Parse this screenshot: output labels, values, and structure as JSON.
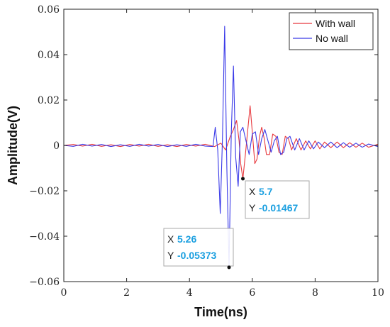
{
  "chart_data": {
    "type": "line",
    "title": "",
    "xlabel": "Time(ns)",
    "ylabel": "Amplitude(V)",
    "xlim": [
      0,
      10
    ],
    "ylim": [
      -0.06,
      0.06
    ],
    "x_ticks": [
      0,
      2,
      4,
      6,
      8,
      10
    ],
    "x_tick_labels": [
      "0",
      "2",
      "4",
      "6",
      "8",
      "10"
    ],
    "y_ticks": [
      -0.06,
      -0.04,
      -0.02,
      0,
      0.02,
      0.04,
      0.06
    ],
    "y_tick_labels": [
      "−0.06",
      "−0.04",
      "−0.02",
      "0",
      "0.02",
      "0.04",
      "0.06"
    ],
    "grid": false,
    "legend_position": "top-right",
    "series": [
      {
        "name": "With wall",
        "color": "#e8383d",
        "x": [
          0,
          0.3,
          0.6,
          0.9,
          1.2,
          1.5,
          1.8,
          2.1,
          2.4,
          2.7,
          3.0,
          3.3,
          3.6,
          3.9,
          4.2,
          4.5,
          4.8,
          5.0,
          5.15,
          5.3,
          5.4,
          5.5,
          5.58,
          5.63,
          5.7,
          5.78,
          5.85,
          5.93,
          6.0,
          6.08,
          6.15,
          6.23,
          6.3,
          6.38,
          6.45,
          6.55,
          6.65,
          6.75,
          6.85,
          6.95,
          7.05,
          7.15,
          7.25,
          7.4,
          7.55,
          7.7,
          7.85,
          8.0,
          8.15,
          8.3,
          8.5,
          8.7,
          8.9,
          9.1,
          9.3,
          9.5,
          9.7,
          10.0
        ],
        "y": [
          0,
          0.0004,
          -0.0003,
          0.0005,
          -0.0004,
          0.0003,
          -0.0005,
          0.0004,
          -0.0003,
          0.0005,
          -0.0004,
          0.0003,
          -0.0005,
          0.0004,
          -0.0003,
          0.0005,
          -0.0005,
          0.001,
          -0.002,
          0.004,
          0.007,
          0.011,
          0.002,
          -0.008,
          -0.01467,
          -0.004,
          0.006,
          0.0175,
          0.006,
          -0.008,
          -0.006,
          0.004,
          0.008,
          0.003,
          -0.004,
          -0.004,
          0.005,
          0.004,
          -0.003,
          -0.004,
          0.004,
          0.003,
          -0.002,
          0.003,
          -0.002,
          0.002,
          -0.0015,
          0.002,
          -0.0015,
          0.0015,
          -0.001,
          0.0015,
          -0.001,
          0.0012,
          -0.0008,
          0.001,
          -0.0008,
          0.0005
        ]
      },
      {
        "name": "No wall",
        "color": "#3a3ae8",
        "x": [
          0,
          0.3,
          0.6,
          0.9,
          1.2,
          1.5,
          1.8,
          2.1,
          2.4,
          2.7,
          3.0,
          3.3,
          3.6,
          3.9,
          4.2,
          4.5,
          4.75,
          4.82,
          4.9,
          4.98,
          5.05,
          5.12,
          5.19,
          5.26,
          5.33,
          5.4,
          5.47,
          5.55,
          5.62,
          5.7,
          5.8,
          5.9,
          6.0,
          6.1,
          6.2,
          6.3,
          6.4,
          6.5,
          6.6,
          6.7,
          6.8,
          6.9,
          7.0,
          7.1,
          7.2,
          7.35,
          7.5,
          7.65,
          7.8,
          7.95,
          8.1,
          8.3,
          8.5,
          8.7,
          8.9,
          9.1,
          9.3,
          9.5,
          9.7,
          10.0
        ],
        "y": [
          0,
          -0.0004,
          0.0005,
          -0.0003,
          0.0004,
          -0.0005,
          0.0003,
          -0.0004,
          0.0005,
          -0.0003,
          0.0004,
          -0.0005,
          0.0003,
          -0.0004,
          0.0005,
          -0.0003,
          -0.0005,
          0.008,
          -0.002,
          -0.03,
          0.003,
          0.0525,
          -0.01,
          -0.05373,
          0.005,
          0.035,
          -0.005,
          -0.018,
          0.006,
          0.008,
          0.002,
          -0.004,
          0.005,
          0.006,
          -0.004,
          0.003,
          0.007,
          0.002,
          -0.003,
          0.002,
          0.004,
          -0.004,
          -0.003,
          0.003,
          0.004,
          -0.002,
          0.003,
          -0.002,
          0.002,
          -0.0015,
          0.0015,
          -0.001,
          0.0015,
          -0.001,
          0.0012,
          -0.0008,
          0.001,
          -0.0008,
          0.0006,
          -0.0005
        ]
      }
    ],
    "datatips": [
      {
        "x_label": "X",
        "x_value": "5.7",
        "y_label": "Y",
        "y_value": "-0.01467",
        "x": 5.7,
        "y": -0.01467,
        "series": "With wall"
      },
      {
        "x_label": "X",
        "x_value": "5.26",
        "y_label": "Y",
        "y_value": "-0.05373",
        "x": 5.26,
        "y": -0.05373,
        "series": "No wall"
      }
    ]
  }
}
